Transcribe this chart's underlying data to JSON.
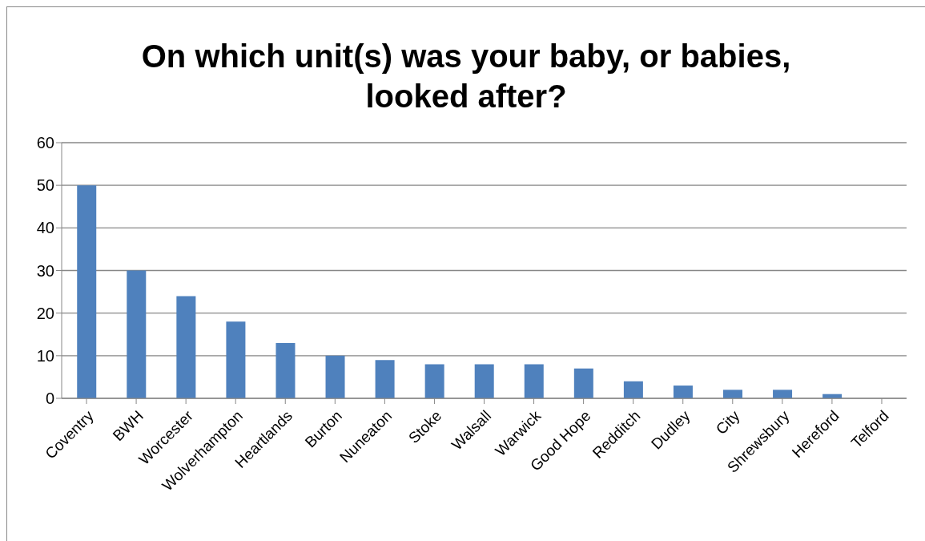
{
  "chart_data": {
    "type": "bar",
    "title": "On which unit(s) was your baby, or babies, looked after?",
    "categories": [
      "Coventry",
      "BWH",
      "Worcester",
      "Wolverhampton",
      "Heartlands",
      "Burton",
      "Nuneaton",
      "Stoke",
      "Walsall",
      "Warwick",
      "Good Hope",
      "Redditch",
      "Dudley",
      "City",
      "Shrewsbury",
      "Hereford",
      "Telford"
    ],
    "values": [
      50,
      30,
      24,
      18,
      13,
      10,
      9,
      8,
      8,
      8,
      7,
      4,
      3,
      2,
      2,
      1,
      0
    ],
    "color": "#4f81bd",
    "ylim": [
      0,
      60
    ],
    "yticks": [
      0,
      10,
      20,
      30,
      40,
      50,
      60
    ],
    "grid": "y"
  }
}
